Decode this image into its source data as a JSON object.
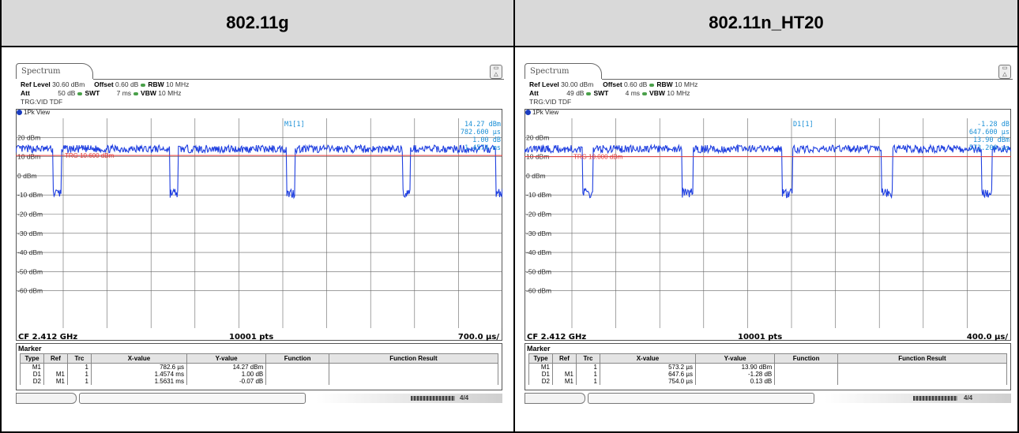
{
  "columns": [
    "802.11g",
    "802.11n_HT20"
  ],
  "colors": {
    "trace": "#1f3fe0",
    "trigger": "#e03a3a",
    "marker": "#1a8fd6",
    "grid": "#666666"
  },
  "panels": [
    {
      "tab": "Spectrum",
      "icon": "screen-icon",
      "ref_level": "30.60 dBm",
      "offset": "0.60 dB",
      "rbw": "10 MHz",
      "att": "50 dB",
      "swt": "7 ms",
      "vbw": "10 MHz",
      "trg": "TRG:VID TDF",
      "view": "1Pk View",
      "marker_readout": {
        "name": "M1[1]",
        "value": "14.27 dBm",
        "time": "782.600 µs",
        "line3": "1.00 dB",
        "line4": "1.4574 ms"
      },
      "trg_label": "TRG  10.600 dBm",
      "ref_labels": [
        "20 dBm",
        "10 dBm",
        "0 dBm",
        "-10 dBm",
        "-20 dBm",
        "-30 dBm",
        "-40 dBm",
        "-50 dBm",
        "-60 dBm"
      ],
      "cf": "CF 2.412 GHz",
      "pts": "10001 pts",
      "div": "700.0 µs/",
      "marker_title": "Marker",
      "marker_headers": [
        "Type",
        "Ref",
        "Trc",
        "X-value",
        "Y-value",
        "Function",
        "Function Result"
      ],
      "marker_rows": [
        [
          "M1",
          "",
          "1",
          "782.6 µs",
          "14.27 dBm",
          "",
          ""
        ],
        [
          "D1",
          "M1",
          "1",
          "1.4574 ms",
          "1.00 dB",
          "",
          ""
        ],
        [
          "D2",
          "M1",
          "1",
          "1.5631 ms",
          "-0.07 dB",
          "",
          ""
        ]
      ],
      "trace": {
        "high": 14,
        "low": -9,
        "trigger": 10.6,
        "dips": [
          0.085,
          0.325,
          0.565,
          0.803,
          0.995
        ],
        "dip_width": 0.016
      },
      "status": "4/4"
    },
    {
      "tab": "Spectrum",
      "icon": "screen-icon",
      "ref_level": "30.00 dBm",
      "offset": "0.60 dB",
      "rbw": "10 MHz",
      "att": "49 dB",
      "swt": "4 ms",
      "vbw": "10 MHz",
      "trg": "TRG:VID TDF",
      "view": "1Pk View",
      "marker_readout": {
        "name": "D1[1]",
        "value": "-1.28 dB",
        "time": "647.600 µs",
        "line3": "13.90 dBm",
        "line4": "573.200 µs"
      },
      "trg_label": "TRG  10.000 dBm",
      "ref_labels": [
        "20 dBm",
        "10 dBm",
        "0 dBm",
        "-10 dBm",
        "-20 dBm",
        "-30 dBm",
        "-40 dBm",
        "-50 dBm",
        "-60 dBm"
      ],
      "cf": "CF 2.412 GHz",
      "pts": "10001 pts",
      "div": "400.0 µs/",
      "marker_title": "Marker",
      "marker_headers": [
        "Type",
        "Ref",
        "Trc",
        "X-value",
        "Y-value",
        "Function",
        "Function Result"
      ],
      "marker_rows": [
        [
          "M1",
          "",
          "1",
          "573.2 µs",
          "13.90 dBm",
          "",
          ""
        ],
        [
          "D1",
          "M1",
          "1",
          "647.6 µs",
          "-1.28 dB",
          "",
          ""
        ],
        [
          "D2",
          "M1",
          "1",
          "754.0 µs",
          "0.13 dB",
          "",
          ""
        ]
      ],
      "trace": {
        "high": 14,
        "low": -9,
        "trigger": 10.0,
        "dips": [
          0.13,
          0.335,
          0.54,
          0.745,
          0.95
        ],
        "dip_width": 0.022
      },
      "status": "4/4"
    }
  ]
}
